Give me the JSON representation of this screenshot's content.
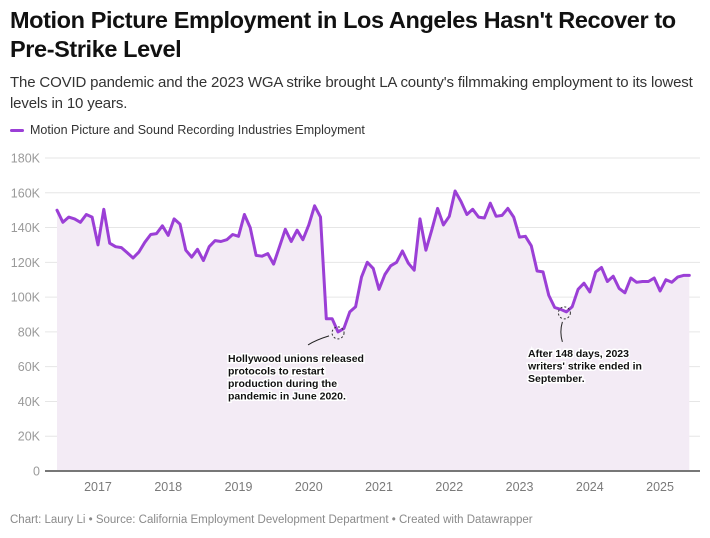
{
  "header": {
    "title": "Motion Picture Employment in Los Angeles Hasn't Recover to Pre-Strike Level",
    "subtitle": "The COVID pandemic and the 2023 WGA strike brought LA county's filmmaking employment to its lowest levels in 10 years."
  },
  "legend": {
    "label": "Motion Picture and Sound Recording Industries Employment",
    "color": "#9b3fd6"
  },
  "footer": {
    "text": "Chart: Laury Li • Source: California Employment Development Department • Created with Datawrapper"
  },
  "colors": {
    "line": "#9b3fd6",
    "area": "#f3ebf5",
    "grid": "#e6e6e6",
    "axis": "#777777"
  },
  "chart_data": {
    "type": "area",
    "title": "Motion Picture Employment in Los Angeles Hasn't Recover to Pre-Strike Level",
    "subtitle": "The COVID pandemic and the 2023 WGA strike brought LA county's filmmaking employment to its lowest levels in 10 years.",
    "xlabel": "",
    "ylabel": "",
    "x_start": "2016-06",
    "x_end": "2025-06",
    "x_interval": "monthly",
    "ylim": [
      0,
      180000
    ],
    "yticks": [
      0,
      20000,
      40000,
      60000,
      80000,
      100000,
      120000,
      140000,
      160000,
      180000
    ],
    "ytick_labels": [
      "0",
      "20K",
      "40K",
      "60K",
      "80K",
      "100K",
      "120K",
      "140K",
      "160K",
      "180K"
    ],
    "xtick_labels": [
      "2017",
      "2018",
      "2019",
      "2020",
      "2021",
      "2022",
      "2023",
      "2024",
      "2025"
    ],
    "grid": true,
    "legend_position": "top-left",
    "series": [
      {
        "name": "Motion Picture and Sound Recording Industries Employment",
        "values": [
          150000,
          143000,
          146000,
          145000,
          143000,
          147500,
          146000,
          130000,
          150500,
          131000,
          129000,
          128500,
          125500,
          122500,
          126000,
          131500,
          136000,
          136500,
          141000,
          135500,
          145000,
          142000,
          127000,
          123000,
          127500,
          121000,
          129000,
          132500,
          132000,
          133000,
          136000,
          135000,
          147500,
          140000,
          124000,
          123500,
          125000,
          119000,
          129000,
          139000,
          132000,
          138500,
          133000,
          141500,
          152500,
          146000,
          87500,
          87500,
          80000,
          82000,
          91500,
          94500,
          111500,
          120000,
          116500,
          104500,
          113000,
          118000,
          120000,
          126500,
          119500,
          115500,
          145000,
          127000,
          138500,
          151000,
          141500,
          146500,
          161000,
          155000,
          147500,
          150500,
          146000,
          145500,
          154000,
          146500,
          147000,
          151000,
          146000,
          134500,
          135000,
          129500,
          115000,
          114500,
          101000,
          94000,
          93000,
          91500,
          94500,
          104500,
          108000,
          103000,
          114500,
          117000,
          109000,
          112000,
          105000,
          102500,
          111000,
          108500,
          109000,
          109000,
          111000,
          103500,
          110000,
          108500,
          111500,
          112500,
          112500
        ]
      }
    ],
    "annotations": [
      {
        "text": "Hollywood unions released protocols to restart production during the pandemic in June 2020.",
        "lines": [
          "Hollywood unions released",
          "protocols to restart",
          "production during the",
          "pandemic in June 2020."
        ],
        "target_index": 48
      },
      {
        "text": "After 148 days, 2023 writers' strike ended in September.",
        "lines": [
          "After 148 days, 2023",
          "writers' strike ended in",
          "September."
        ],
        "target_index": 87
      }
    ]
  }
}
